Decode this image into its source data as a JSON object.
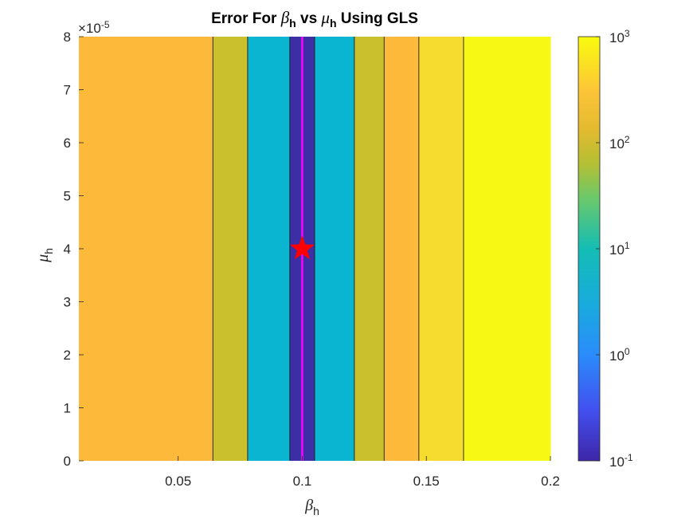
{
  "chart_data": {
    "type": "heatmap",
    "title": {
      "prefix": "Error For ",
      "sym1": "β",
      "sub1": "h",
      "mid": " vs ",
      "sym2": "μ",
      "sub2": "h",
      "suffix": " Using GLS"
    },
    "xlabel": {
      "sym": "β",
      "sub": "h"
    },
    "ylabel": {
      "sym": "μ",
      "sub": "h"
    },
    "xlim": [
      0.01,
      0.2
    ],
    "ylim": [
      0,
      8
    ],
    "y_exponent_label": "×10",
    "y_exponent_power": "-5",
    "x_ticks": [
      0.05,
      0.1,
      0.15,
      0.2
    ],
    "x_tick_labels": [
      "0.05",
      "0.1",
      "0.15",
      "0.2"
    ],
    "y_ticks": [
      0,
      1,
      2,
      3,
      4,
      5,
      6,
      7,
      8
    ],
    "y_tick_labels": [
      "0",
      "1",
      "2",
      "3",
      "4",
      "5",
      "6",
      "7",
      "8"
    ],
    "bands": [
      {
        "x0": 0.01,
        "x1": 0.064,
        "color": "#FDB93A"
      },
      {
        "x0": 0.064,
        "x1": 0.078,
        "color": "#CABF2C"
      },
      {
        "x0": 0.078,
        "x1": 0.095,
        "color": "#0AB5D1"
      },
      {
        "x0": 0.095,
        "x1": 0.105,
        "color": "#3C2FA6"
      },
      {
        "x0": 0.105,
        "x1": 0.121,
        "color": "#0AB5D1"
      },
      {
        "x0": 0.121,
        "x1": 0.133,
        "color": "#CABF2C"
      },
      {
        "x0": 0.133,
        "x1": 0.147,
        "color": "#FDB93A"
      },
      {
        "x0": 0.147,
        "x1": 0.165,
        "color": "#F6DC2E"
      },
      {
        "x0": 0.165,
        "x1": 0.2,
        "color": "#F8F815"
      }
    ],
    "contour_lines_x": [
      0.064,
      0.078,
      0.095,
      0.105,
      0.121,
      0.133,
      0.147,
      0.165
    ],
    "true_value_line_x": 0.1,
    "true_value_line_color": "#FF00FF",
    "marker": {
      "x": 0.1,
      "y": 4,
      "color": "#FF0000",
      "shape": "star"
    },
    "colorbar": {
      "scale": "log",
      "min_exp": -1,
      "max_exp": 3,
      "tick_exps": [
        -1,
        0,
        1,
        2,
        3
      ],
      "tick_base": "10",
      "tick_powers": [
        "-1",
        "0",
        "1",
        "2",
        "3"
      ],
      "colormap": "parula"
    }
  }
}
